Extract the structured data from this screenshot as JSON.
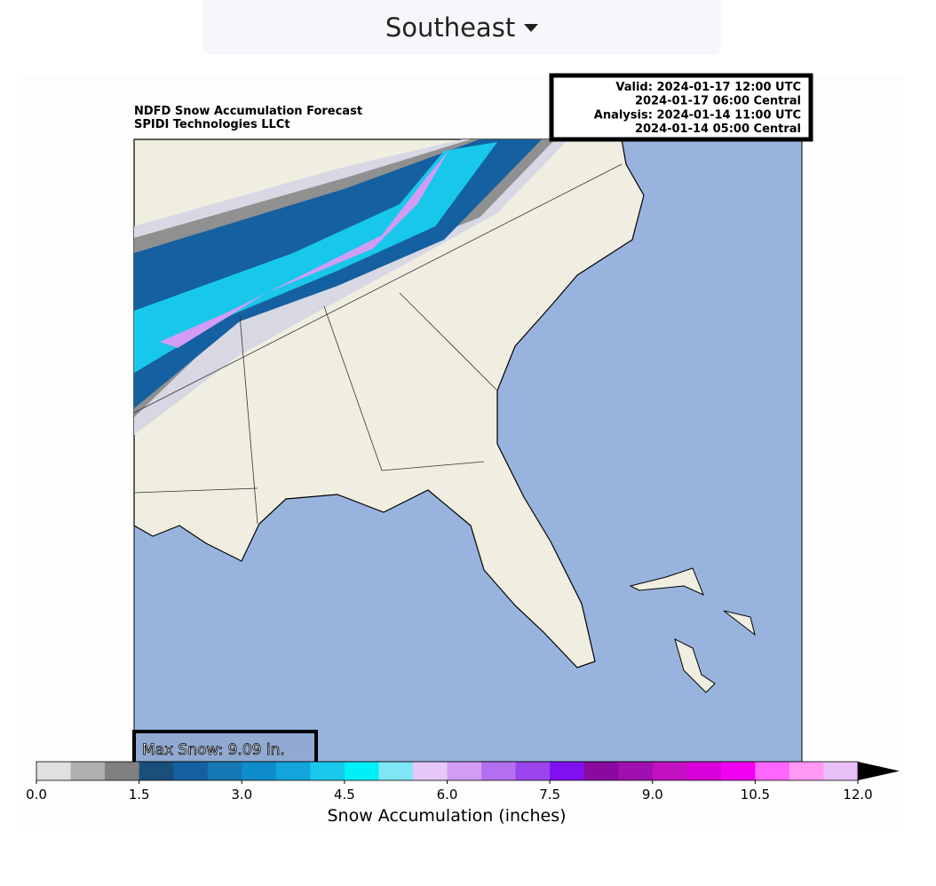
{
  "dropdown": {
    "label": "Southeast"
  },
  "map": {
    "title": "NDFD Snow Accumulation Forecast",
    "subtitle": "SPIDI Technologies LLCt",
    "valid_box": [
      "Valid: 2024-01-17 12:00 UTC",
      "2024-01-17 06:00 Central",
      "Analysis: 2024-01-14 11:00 UTC",
      "2024-01-14 05:00 Central"
    ],
    "max_snow": "Max Snow: 9.09 in."
  },
  "colorbar": {
    "label": "Snow Accumulation (inches)",
    "ticks": [
      "0.0",
      "1.5",
      "3.0",
      "4.5",
      "6.0",
      "7.5",
      "9.0",
      "10.5",
      "12.0"
    ],
    "colors": [
      "#e0e0e0",
      "#b0b0b0",
      "#808080",
      "#1a4f7a",
      "#1560a0",
      "#1478b4",
      "#0f8ccc",
      "#12a5dc",
      "#18c8ea",
      "#00f0f8",
      "#7fe6f8",
      "#e6c8f8",
      "#d29cf4",
      "#b46ef0",
      "#9a44ee",
      "#8010f0",
      "#8a0aa0",
      "#a010b0",
      "#c010c0",
      "#d800d8",
      "#f000f0",
      "#ff66ff",
      "#ff99f4",
      "#e8c0f8"
    ],
    "extend_color": "#000000"
  }
}
